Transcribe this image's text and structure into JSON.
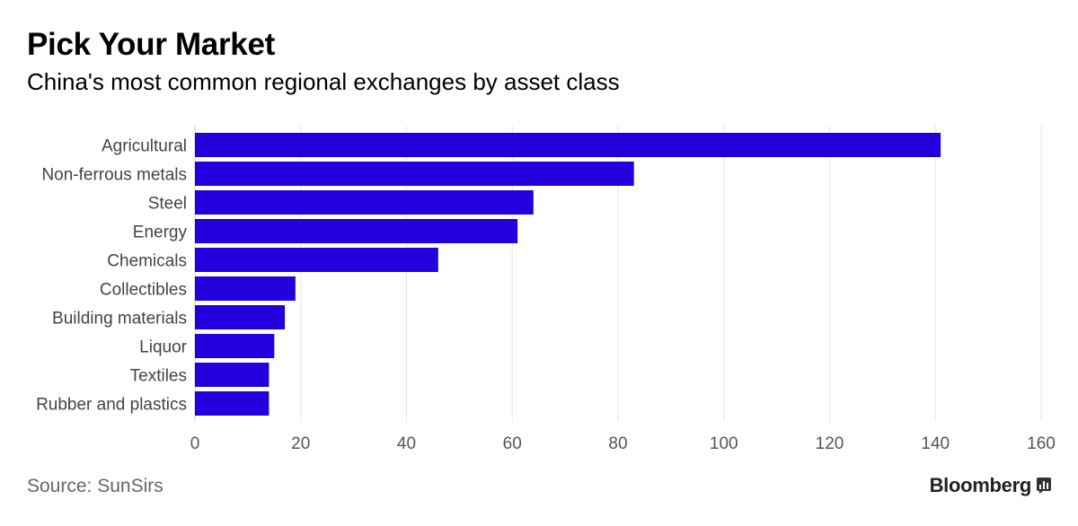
{
  "title": "Pick Your Market",
  "subtitle": "China's most common regional exchanges by asset class",
  "source": "Source: SunSirs",
  "brand": "Bloomberg",
  "colors": {
    "bar": "#2200dd",
    "grid": "#e6e6e6",
    "axis": "#cccccc"
  },
  "chart_data": {
    "type": "bar",
    "orientation": "horizontal",
    "title": "Pick Your Market",
    "subtitle": "China's most common regional exchanges by asset class",
    "categories": [
      "Agricultural",
      "Non-ferrous metals",
      "Steel",
      "Energy",
      "Chemicals",
      "Collectibles",
      "Building materials",
      "Liquor",
      "Textiles",
      "Rubber and plastics"
    ],
    "values": [
      141,
      83,
      64,
      61,
      46,
      19,
      17,
      15,
      14,
      14
    ],
    "xlim": [
      0,
      160
    ],
    "xticks": [
      0,
      20,
      40,
      60,
      80,
      100,
      120,
      140,
      160
    ],
    "xlabel": "",
    "ylabel": "",
    "grid": true
  }
}
